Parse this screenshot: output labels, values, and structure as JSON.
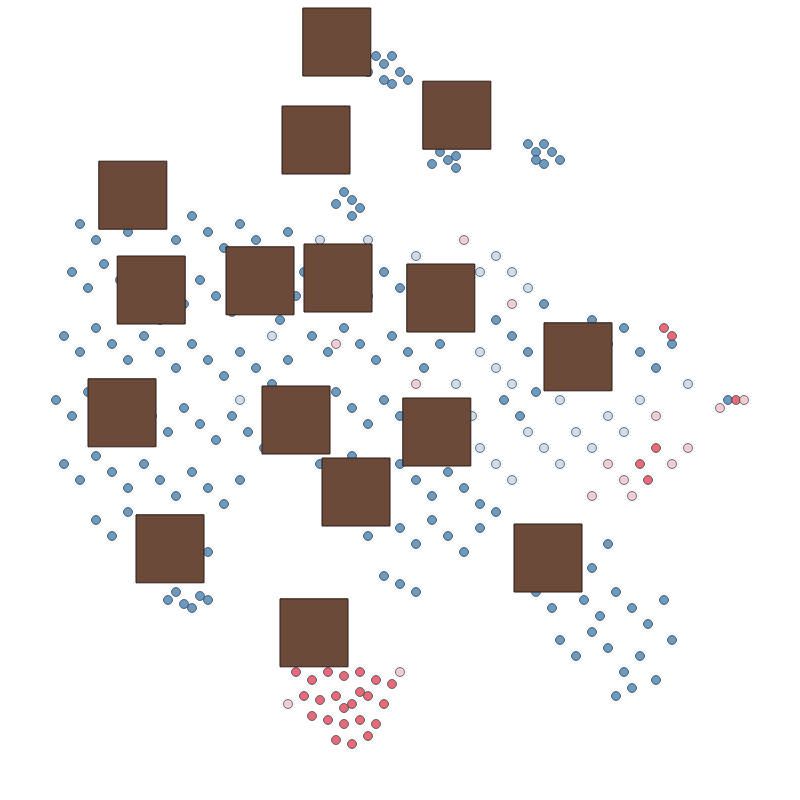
{
  "chart_data": {
    "type": "scatter",
    "tick_labels": false,
    "grid": false,
    "marker": "circle",
    "xlim": [
      0,
      100
    ],
    "ylim": [
      0,
      100
    ],
    "series": [
      {
        "color": "#5b8db8",
        "points": [
          [
            47,
            93
          ],
          [
            48,
            92
          ],
          [
            49,
            93
          ],
          [
            50,
            91
          ],
          [
            48,
            90
          ],
          [
            46,
            91
          ],
          [
            49,
            89.5
          ],
          [
            51,
            90
          ],
          [
            55,
            81
          ],
          [
            56,
            80
          ],
          [
            57,
            80.5
          ],
          [
            54,
            79.5
          ],
          [
            57,
            79
          ],
          [
            66,
            82
          ],
          [
            67,
            81
          ],
          [
            68,
            82
          ],
          [
            69,
            81
          ],
          [
            67,
            80
          ],
          [
            68,
            79.5
          ],
          [
            70,
            80
          ],
          [
            43,
            76
          ],
          [
            44,
            75
          ],
          [
            45,
            74
          ],
          [
            42,
            74.5
          ],
          [
            44,
            73
          ],
          [
            10,
            72
          ],
          [
            12,
            70
          ],
          [
            14,
            73
          ],
          [
            16,
            71
          ],
          [
            18,
            74
          ],
          [
            20,
            72
          ],
          [
            22,
            70
          ],
          [
            24,
            73
          ],
          [
            26,
            71
          ],
          [
            28,
            69
          ],
          [
            30,
            72
          ],
          [
            32,
            70
          ],
          [
            34,
            68
          ],
          [
            36,
            71
          ],
          [
            9,
            66
          ],
          [
            11,
            64
          ],
          [
            13,
            67
          ],
          [
            15,
            65
          ],
          [
            17,
            63
          ],
          [
            19,
            66
          ],
          [
            21,
            64
          ],
          [
            23,
            62
          ],
          [
            25,
            65
          ],
          [
            27,
            63
          ],
          [
            29,
            61
          ],
          [
            31,
            64
          ],
          [
            33,
            62
          ],
          [
            35,
            60
          ],
          [
            37,
            63
          ],
          [
            8,
            58
          ],
          [
            10,
            56
          ],
          [
            12,
            59
          ],
          [
            14,
            57
          ],
          [
            16,
            55
          ],
          [
            18,
            58
          ],
          [
            20,
            56
          ],
          [
            22,
            54
          ],
          [
            24,
            57
          ],
          [
            26,
            55
          ],
          [
            28,
            53
          ],
          [
            30,
            56
          ],
          [
            32,
            54
          ],
          [
            34,
            52
          ],
          [
            36,
            55
          ],
          [
            7,
            50
          ],
          [
            9,
            48
          ],
          [
            11,
            51
          ],
          [
            13,
            49
          ],
          [
            15,
            47
          ],
          [
            17,
            50
          ],
          [
            19,
            48
          ],
          [
            21,
            46
          ],
          [
            23,
            49
          ],
          [
            25,
            47
          ],
          [
            27,
            45
          ],
          [
            29,
            48
          ],
          [
            31,
            46
          ],
          [
            33,
            44
          ],
          [
            8,
            42
          ],
          [
            10,
            40
          ],
          [
            12,
            43
          ],
          [
            14,
            41
          ],
          [
            16,
            39
          ],
          [
            18,
            42
          ],
          [
            20,
            40
          ],
          [
            22,
            38
          ],
          [
            24,
            41
          ],
          [
            26,
            39
          ],
          [
            28,
            37
          ],
          [
            30,
            40
          ],
          [
            12,
            35
          ],
          [
            14,
            33
          ],
          [
            16,
            36
          ],
          [
            18,
            34
          ],
          [
            20,
            32
          ],
          [
            22,
            35
          ],
          [
            24,
            33
          ],
          [
            26,
            31
          ],
          [
            21,
            25
          ],
          [
            23,
            24.5
          ],
          [
            25,
            25.5
          ],
          [
            24,
            24
          ],
          [
            26,
            25
          ],
          [
            22,
            26
          ],
          [
            38,
            66
          ],
          [
            40,
            64
          ],
          [
            42,
            67
          ],
          [
            44,
            65
          ],
          [
            46,
            63
          ],
          [
            48,
            66
          ],
          [
            50,
            64
          ],
          [
            52,
            62
          ],
          [
            39,
            58
          ],
          [
            41,
            56
          ],
          [
            43,
            59
          ],
          [
            45,
            57
          ],
          [
            47,
            55
          ],
          [
            49,
            58
          ],
          [
            51,
            56
          ],
          [
            53,
            54
          ],
          [
            55,
            57
          ],
          [
            38,
            50
          ],
          [
            40,
            48
          ],
          [
            42,
            51
          ],
          [
            44,
            49
          ],
          [
            46,
            47
          ],
          [
            48,
            50
          ],
          [
            50,
            48
          ],
          [
            52,
            46
          ],
          [
            54,
            49
          ],
          [
            56,
            47
          ],
          [
            58,
            45
          ],
          [
            40,
            42
          ],
          [
            42,
            40
          ],
          [
            44,
            43
          ],
          [
            46,
            41
          ],
          [
            48,
            39
          ],
          [
            50,
            42
          ],
          [
            52,
            40
          ],
          [
            54,
            38
          ],
          [
            56,
            41
          ],
          [
            58,
            39
          ],
          [
            60,
            37
          ],
          [
            44,
            35
          ],
          [
            46,
            33
          ],
          [
            48,
            36
          ],
          [
            50,
            34
          ],
          [
            52,
            32
          ],
          [
            54,
            35
          ],
          [
            56,
            33
          ],
          [
            58,
            31
          ],
          [
            60,
            34
          ],
          [
            62,
            36
          ],
          [
            50,
            27
          ],
          [
            52,
            26
          ],
          [
            48,
            28
          ],
          [
            62,
            60
          ],
          [
            64,
            58
          ],
          [
            66,
            56
          ],
          [
            68,
            62
          ],
          [
            70,
            58
          ],
          [
            72,
            55
          ],
          [
            74,
            60
          ],
          [
            76,
            57
          ],
          [
            78,
            59
          ],
          [
            80,
            56
          ],
          [
            82,
            54
          ],
          [
            84,
            57
          ],
          [
            63,
            50
          ],
          [
            65,
            48
          ],
          [
            67,
            51
          ],
          [
            66,
            32
          ],
          [
            68,
            30
          ],
          [
            70,
            33
          ],
          [
            72,
            31
          ],
          [
            74,
            29
          ],
          [
            76,
            32
          ],
          [
            67,
            26
          ],
          [
            69,
            24
          ],
          [
            71,
            27
          ],
          [
            73,
            25
          ],
          [
            75,
            23
          ],
          [
            77,
            26
          ],
          [
            79,
            24
          ],
          [
            81,
            22
          ],
          [
            83,
            25
          ],
          [
            70,
            20
          ],
          [
            72,
            18
          ],
          [
            74,
            21
          ],
          [
            76,
            19
          ],
          [
            78,
            16
          ],
          [
            80,
            18
          ],
          [
            82,
            15
          ],
          [
            77,
            13
          ],
          [
            79,
            14
          ],
          [
            84,
            20
          ],
          [
            91,
            50
          ]
        ]
      },
      {
        "color": "#c9d9e8",
        "points": [
          [
            40,
            70
          ],
          [
            46,
            70
          ],
          [
            52,
            68
          ],
          [
            56,
            66
          ],
          [
            58,
            62
          ],
          [
            60,
            66
          ],
          [
            62,
            68
          ],
          [
            64,
            66
          ],
          [
            66,
            64
          ],
          [
            60,
            56
          ],
          [
            62,
            54
          ],
          [
            64,
            52
          ],
          [
            66,
            46
          ],
          [
            68,
            44
          ],
          [
            70,
            42
          ],
          [
            72,
            46
          ],
          [
            74,
            44
          ],
          [
            76,
            48
          ],
          [
            78,
            46
          ],
          [
            60,
            44
          ],
          [
            62,
            42
          ],
          [
            64,
            40
          ],
          [
            34,
            58
          ],
          [
            30,
            50
          ],
          [
            36,
            46
          ],
          [
            20,
            60
          ],
          [
            57,
            52
          ],
          [
            55,
            62
          ],
          [
            59,
            48
          ],
          [
            70,
            50
          ],
          [
            80,
            50
          ],
          [
            86,
            52
          ]
        ]
      },
      {
        "color": "#e05a68",
        "points": [
          [
            37,
            16
          ],
          [
            39,
            15
          ],
          [
            41,
            16
          ],
          [
            43,
            15.5
          ],
          [
            45,
            16
          ],
          [
            47,
            15
          ],
          [
            49,
            14.5
          ],
          [
            38,
            13
          ],
          [
            40,
            12.5
          ],
          [
            42,
            13
          ],
          [
            44,
            12
          ],
          [
            46,
            13
          ],
          [
            48,
            12
          ],
          [
            39,
            10.5
          ],
          [
            41,
            10
          ],
          [
            43,
            9.5
          ],
          [
            45,
            10
          ],
          [
            47,
            9.5
          ],
          [
            42,
            7.5
          ],
          [
            44,
            7
          ],
          [
            46,
            8
          ],
          [
            43,
            11.5
          ],
          [
            45,
            13.5
          ],
          [
            80,
            42
          ],
          [
            82,
            44
          ],
          [
            81,
            40
          ],
          [
            83,
            59
          ],
          [
            84,
            58
          ],
          [
            92,
            50
          ]
        ]
      },
      {
        "color": "#f2c6cc",
        "points": [
          [
            37,
            18
          ],
          [
            50,
            16
          ],
          [
            36,
            12
          ],
          [
            76,
            42
          ],
          [
            78,
            40
          ],
          [
            84,
            42
          ],
          [
            86,
            44
          ],
          [
            79,
            38
          ],
          [
            74,
            38
          ],
          [
            72,
            52
          ],
          [
            82,
            48
          ],
          [
            90,
            49
          ],
          [
            93,
            50
          ],
          [
            64,
            62
          ],
          [
            58,
            70
          ],
          [
            42,
            57
          ],
          [
            52,
            52
          ]
        ]
      }
    ],
    "thumbnails": [
      [
        42.1,
        94.75
      ],
      [
        57.1,
        85.6
      ],
      [
        39.5,
        82.5
      ],
      [
        16.6,
        75.6
      ],
      [
        18.9,
        63.75
      ],
      [
        32.5,
        64.9
      ],
      [
        42.25,
        65.25
      ],
      [
        55.1,
        62.75
      ],
      [
        72.25,
        55.4
      ],
      [
        15.25,
        48.4
      ],
      [
        37,
        47.5
      ],
      [
        54.6,
        46
      ],
      [
        44.5,
        38.5
      ],
      [
        21.25,
        31.4
      ],
      [
        68.5,
        30.25
      ],
      [
        39.25,
        20.9
      ]
    ]
  }
}
